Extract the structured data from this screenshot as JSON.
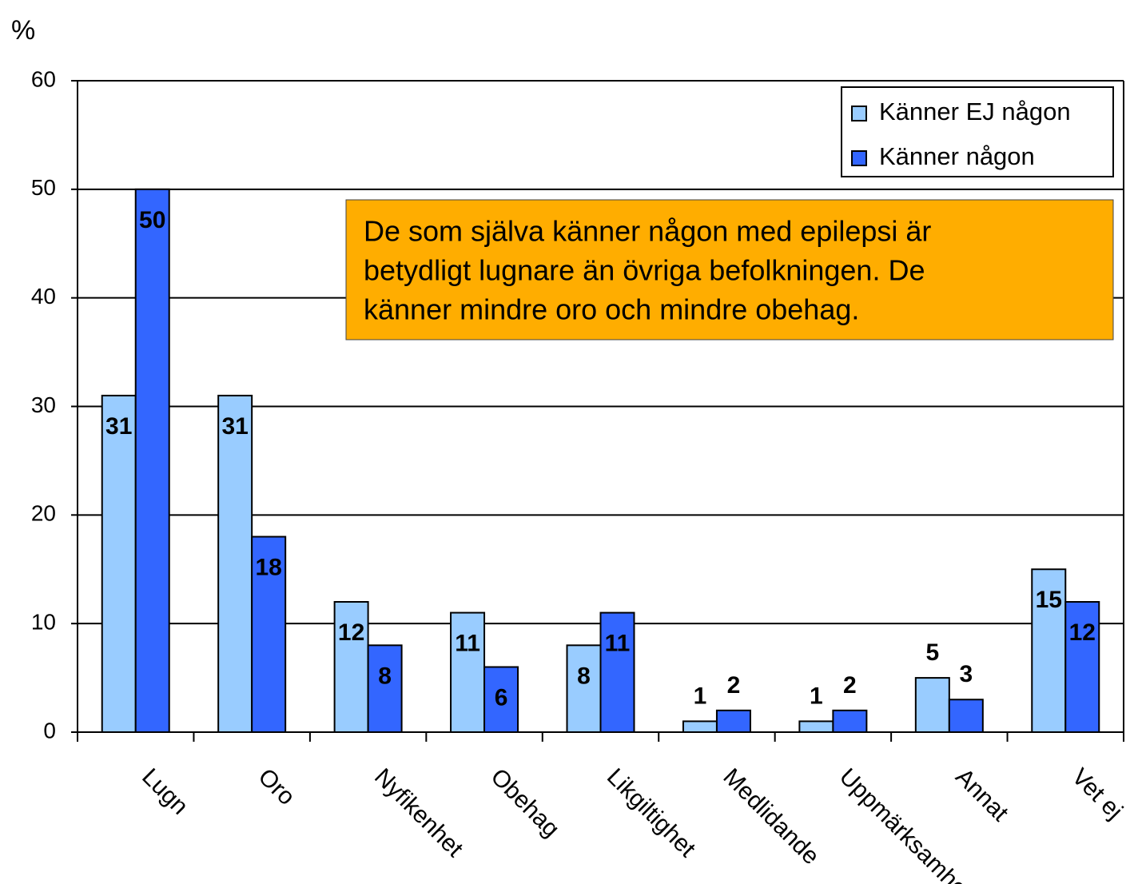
{
  "chart_data": {
    "type": "bar",
    "ylabel": "%",
    "categories": [
      "Lugn",
      "Oro",
      "Nyfikenhet",
      "Obehag",
      "Likgiltighet",
      "Medlidande",
      "Uppmärksamhet",
      "Annat",
      "Vet ej"
    ],
    "series": [
      {
        "name": "Känner EJ någon",
        "color": "#99ccff",
        "values": [
          31,
          31,
          12,
          11,
          8,
          1,
          1,
          5,
          15
        ]
      },
      {
        "name": "Känner någon",
        "color": "#3366ff",
        "values": [
          50,
          18,
          8,
          6,
          11,
          2,
          2,
          3,
          12
        ]
      }
    ],
    "ylim": [
      0,
      60
    ],
    "yticks": [
      0,
      10,
      20,
      30,
      40,
      50,
      60
    ],
    "grid": true,
    "legend": "top-right",
    "annotation": [
      "De som själva känner någon med epilepsi är",
      "betydligt lugnare än övriga befolkningen.  De",
      "känner mindre oro och mindre obehag."
    ]
  }
}
